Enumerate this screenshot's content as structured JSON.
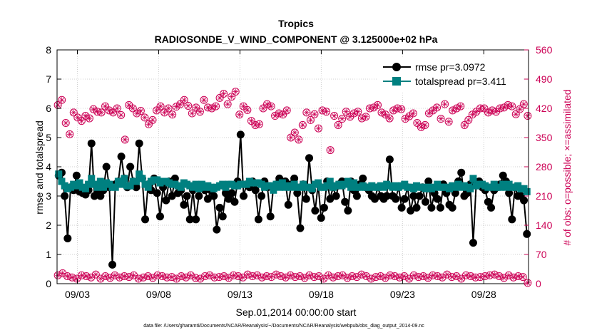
{
  "chart_data": {
    "type": "line",
    "title": "Tropics",
    "subtitle": "RADIOSONDE_V_WIND_COMPONENT @ 3.125000e+02 hPa",
    "xlabel": "Sep.01,2014 00:00:00 start",
    "ylabel": "rmse and totalspread",
    "y2label": "# of obs: o=possible; ×=assimilated",
    "footnote": "data file: /Users/gharamti/Documents/NCAR/Reanalysis/~/Documents/NCAR/Reanalysis/webpub/obs_diag_output_2014-09.nc",
    "xlim": [
      1.75,
      30.75
    ],
    "ylim": [
      0,
      8
    ],
    "y2lim": [
      0,
      560
    ],
    "xticks": [
      3,
      8,
      13,
      18,
      23,
      28
    ],
    "xtick_labels": [
      "09/03",
      "09/08",
      "09/13",
      "09/18",
      "09/23",
      "09/28"
    ],
    "yticks": [
      0,
      1,
      2,
      3,
      4,
      5,
      6,
      7,
      8
    ],
    "ytick_labels": [
      "0",
      "1",
      "2",
      "3",
      "4",
      "5",
      "6",
      "7",
      "8"
    ],
    "y2ticks": [
      0,
      70,
      140,
      210,
      280,
      350,
      420,
      490,
      560
    ],
    "y2tick_labels": [
      "0",
      "70",
      "140",
      "210",
      "280",
      "350",
      "420",
      "490",
      "560"
    ],
    "legend": [
      "rmse pr=3.0972",
      "totalspread pr=3.411"
    ],
    "legend_location": "top-right",
    "colors": {
      "rmse": "#000000",
      "totalspread": "#008080",
      "obs": "#cc0055"
    },
    "series": [
      {
        "name": "rmse",
        "values": [
          3.7,
          3.8,
          3.0,
          1.55,
          3.3,
          3.2,
          3.7,
          3.15,
          3.1,
          3.05,
          3.2,
          4.8,
          3.0,
          3.2,
          3.0,
          3.2,
          4.0,
          3.3,
          0.65,
          3.4,
          3.5,
          4.35,
          3.6,
          3.3,
          4.0,
          3.5,
          3.3,
          4.8,
          3.6,
          2.2,
          3.4,
          3.2,
          3.6,
          3.1,
          2.3,
          3.3,
          2.85,
          3.5,
          3.0,
          3.6,
          3.1,
          3.2,
          2.7,
          3.0,
          2.2,
          3.2,
          2.2,
          3.0,
          3.3,
          3.2,
          2.9,
          3.2,
          3.0,
          1.85,
          2.6,
          2.3,
          3.1,
          2.9,
          3.1,
          2.8,
          3.5,
          5.1,
          3.0,
          3.4,
          3.3,
          3.5,
          3.2,
          2.2,
          3.0,
          3.5,
          3.3,
          2.3,
          3.3,
          3.4,
          3.6,
          3.4,
          3.5,
          2.7,
          3.4,
          3.6,
          3.1,
          1.9,
          3.4,
          2.9,
          4.3,
          3.2,
          2.5,
          3.4,
          2.25,
          2.6,
          3.5,
          2.9,
          3.3,
          3.0,
          3.4,
          3.5,
          2.8,
          2.5,
          3.5,
          3.2,
          3.0,
          3.4,
          3.6,
          3.3,
          3.2,
          3.0,
          2.9,
          3.3,
          3.0,
          2.9,
          3.0,
          4.25,
          3.0,
          2.9,
          3.3,
          2.6,
          2.9,
          3.3,
          2.5,
          3.0,
          2.6,
          3.0,
          3.3,
          2.8,
          3.5,
          2.6,
          3.1,
          2.9,
          2.6,
          3.4,
          3.1,
          2.7,
          2.6,
          3.1,
          3.5,
          3.8,
          3.0,
          3.1,
          3.4,
          1.4,
          3.4,
          3.5,
          3.3,
          3.2,
          2.8,
          2.6,
          3.2,
          3.3,
          3.4,
          3.7,
          3.5,
          3.1,
          2.2,
          3.3,
          3.0,
          3.0,
          2.85,
          1.7
        ]
      },
      {
        "name": "totalspread",
        "values": [
          3.75,
          3.5,
          3.35,
          3.25,
          3.3,
          3.4,
          3.35,
          3.45,
          3.3,
          3.25,
          3.4,
          3.6,
          3.4,
          3.3,
          3.5,
          3.3,
          3.45,
          3.4,
          3.3,
          3.3,
          3.5,
          3.4,
          3.6,
          3.35,
          3.35,
          3.5,
          3.5,
          3.75,
          3.6,
          3.4,
          3.3,
          3.5,
          3.55,
          3.55,
          3.45,
          3.5,
          3.5,
          3.45,
          3.4,
          3.4,
          3.35,
          3.3,
          3.45,
          3.4,
          3.35,
          3.3,
          3.4,
          3.25,
          3.4,
          3.3,
          3.35,
          3.3,
          3.25,
          3.3,
          3.35,
          3.4,
          3.3,
          3.4,
          3.4,
          3.35,
          3.35,
          3.4,
          3.4,
          3.4,
          3.5,
          3.45,
          3.45,
          3.45,
          3.4,
          3.3,
          3.35,
          3.35,
          3.2,
          3.4,
          3.3,
          3.45,
          3.3,
          3.35,
          3.3,
          3.4,
          3.3,
          3.3,
          3.4,
          3.3,
          3.3,
          3.25,
          3.4,
          3.45,
          3.3,
          3.3,
          3.35,
          3.5,
          3.3,
          3.35,
          3.4,
          3.35,
          3.4,
          3.5,
          3.3,
          3.45,
          3.3,
          3.3,
          3.35,
          3.3,
          3.3,
          3.35,
          3.3,
          3.3,
          3.35,
          3.3,
          3.4,
          3.35,
          3.3,
          3.35,
          3.3,
          3.35,
          3.4,
          3.3,
          3.3,
          3.25,
          3.35,
          3.3,
          3.3,
          3.25,
          3.3,
          3.25,
          3.3,
          3.4,
          3.3,
          3.3,
          3.3,
          3.25,
          3.35,
          3.3,
          3.4,
          3.3,
          3.35,
          3.3,
          3.25,
          3.6,
          3.35,
          3.4,
          3.4,
          3.35,
          3.3,
          3.3,
          3.4,
          3.3,
          3.3,
          3.4,
          3.3,
          3.4,
          3.3,
          3.3,
          3.35,
          3.25,
          3.25,
          3.15
        ]
      },
      {
        "name": "obs_possible",
        "axis": "right",
        "values": [
          428,
          440,
          385,
          358,
          410,
          398,
          390,
          402,
          396,
          418,
          412,
          410,
          425,
          415,
          410,
          420,
          404,
          345,
          428,
          420,
          408,
          414,
          398,
          382,
          392,
          415,
          425,
          410,
          420,
          405,
          424,
          430,
          440,
          426,
          408,
          422,
          412,
          440,
          422,
          420,
          425,
          445,
          455,
          430,
          448,
          460,
          405,
          425,
          416,
          390,
          380,
          382,
          420,
          430,
          425,
          402,
          408,
          405,
          415,
          350,
          362,
          345,
          380,
          410,
          392,
          406,
          372,
          415,
          412,
          320,
          402,
          380,
          395,
          412,
          400,
          408,
          412,
          396,
          400,
          420,
          422,
          428,
          410,
          405,
          396,
          415,
          420,
          418,
          395,
          401,
          408,
          385,
          375,
          380,
          408,
          415,
          422,
          395,
          430,
          388,
          415,
          420,
          425,
          380,
          392,
          405,
          412,
          420,
          420,
          410,
          415,
          412,
          420,
          422,
          428,
          425,
          406,
          418,
          430,
          402
        ]
      },
      {
        "name": "obs_assimilated",
        "axis": "right",
        "values": [
          20,
          25,
          18,
          15,
          12,
          20,
          18,
          15,
          22,
          12,
          18,
          14,
          20,
          15,
          18,
          16,
          20,
          12,
          15,
          18,
          14,
          20,
          18,
          15,
          16,
          12,
          18,
          15,
          20,
          14,
          12,
          18,
          20,
          15,
          16,
          18,
          14,
          20,
          18,
          15,
          22,
          18,
          20,
          15,
          18,
          16,
          22,
          18,
          15,
          20,
          16,
          18,
          14,
          20,
          16,
          18,
          12,
          20,
          15,
          18,
          20,
          14,
          18,
          16,
          22,
          18,
          12,
          16,
          18,
          14,
          20,
          18,
          15,
          18,
          12,
          20,
          16,
          18,
          14,
          20,
          18,
          15,
          22,
          16,
          18,
          12,
          20,
          18,
          15,
          16,
          18,
          20,
          22,
          18,
          14,
          20,
          15,
          18,
          16,
          2
        ]
      }
    ]
  }
}
